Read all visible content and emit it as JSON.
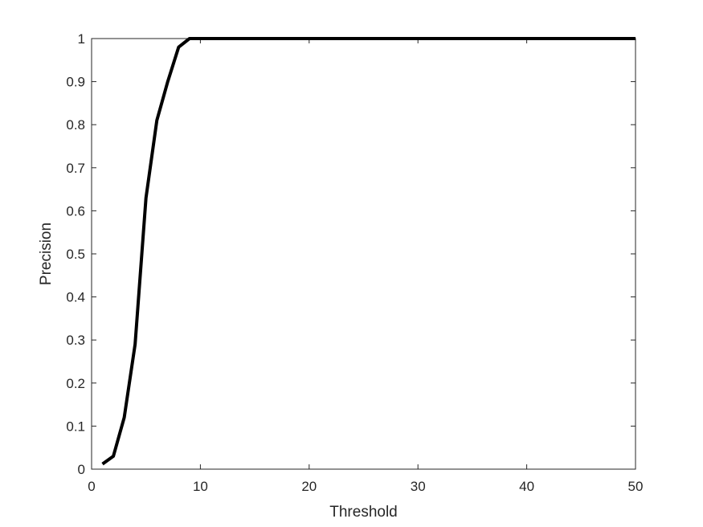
{
  "chart_data": {
    "type": "line",
    "title": "",
    "xlabel": "Threshold",
    "ylabel": "Precision",
    "xlim": [
      0,
      50
    ],
    "ylim": [
      0,
      1
    ],
    "xticks": [
      0,
      10,
      20,
      30,
      40,
      50
    ],
    "xtick_labels": [
      "0",
      "10",
      "20",
      "30",
      "40",
      "50"
    ],
    "yticks": [
      0,
      0.1,
      0.2,
      0.3,
      0.4,
      0.5,
      0.6,
      0.7,
      0.8,
      0.9,
      1
    ],
    "ytick_labels": [
      "0",
      "0.1",
      "0.2",
      "0.3",
      "0.4",
      "0.5",
      "0.6",
      "0.7",
      "0.8",
      "0.9",
      "1"
    ],
    "grid": false,
    "line_color": "#000000",
    "series": [
      {
        "x": [
          1,
          2,
          3,
          4,
          5,
          6,
          7,
          8,
          9,
          10,
          11,
          12,
          13,
          14,
          15,
          16,
          17,
          18,
          19,
          20,
          21,
          22,
          23,
          24,
          25,
          26,
          27,
          28,
          29,
          30,
          31,
          32,
          33,
          34,
          35,
          36,
          37,
          38,
          39,
          40,
          41,
          42,
          43,
          44,
          45,
          46,
          47,
          48,
          49,
          50
        ],
        "values": [
          0.012,
          0.03,
          0.12,
          0.29,
          0.63,
          0.81,
          0.9,
          0.98,
          1,
          1,
          1,
          1,
          1,
          1,
          1,
          1,
          1,
          1,
          1,
          1,
          1,
          1,
          1,
          1,
          1,
          1,
          1,
          1,
          1,
          1,
          1,
          1,
          1,
          1,
          1,
          1,
          1,
          1,
          1,
          1,
          1,
          1,
          1,
          1,
          1,
          1,
          1,
          1,
          1,
          1
        ]
      }
    ]
  }
}
